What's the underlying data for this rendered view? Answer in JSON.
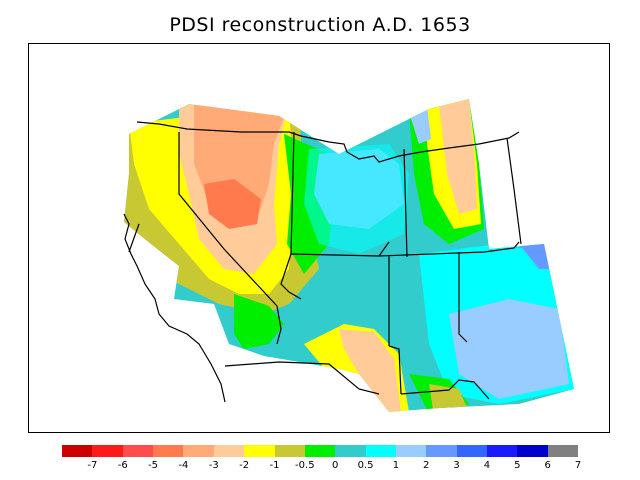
{
  "title": "PDSI reconstruction A.D. 1653",
  "legend": {
    "colors": [
      "#cc0000",
      "#ff1a1a",
      "#ff4d4d",
      "#ff7a4d",
      "#ffaa77",
      "#ffcc99",
      "#ffff00",
      "#c8c832",
      "#00ee00",
      "#33cccc",
      "#00ffff",
      "#99ccff",
      "#6699ff",
      "#3366ff",
      "#1a1aff",
      "#0000cc",
      "#808080"
    ],
    "labels": [
      "-7",
      "-6",
      "-5",
      "-4",
      "-3",
      "-2",
      "-1",
      "-0.5",
      "0",
      "0.5",
      "1",
      "2",
      "3",
      "4",
      "5",
      "6",
      "7"
    ]
  }
}
